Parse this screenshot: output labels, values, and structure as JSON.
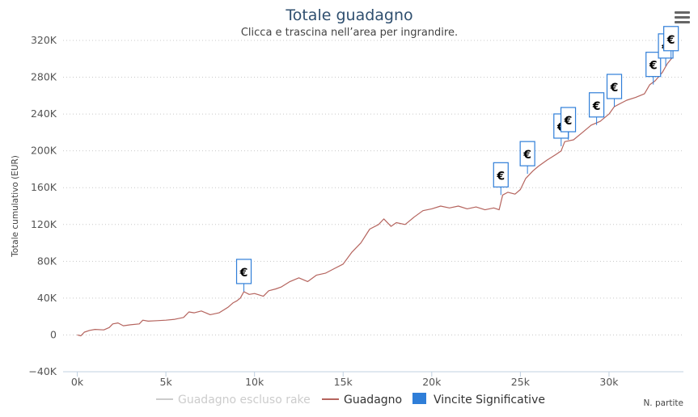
{
  "menu": {
    "icon": "hamburger-menu-icon"
  },
  "chart_data": {
    "type": "line",
    "title": "Totale guadagno",
    "subtitle": "Clicca e trascina nell’area per ingrandire.",
    "ylabel": "Totale cumulativo (EUR)",
    "xlabel": "N. partite",
    "xlim": [
      -800,
      34200
    ],
    "ylim": [
      -40000,
      320000
    ],
    "x_ticks": [
      0,
      5000,
      10000,
      15000,
      20000,
      25000,
      30000
    ],
    "x_tick_labels": [
      "0k",
      "5k",
      "10k",
      "15k",
      "20k",
      "25k",
      "30k"
    ],
    "y_ticks": [
      -40000,
      0,
      40000,
      80000,
      120000,
      160000,
      200000,
      240000,
      280000,
      320000
    ],
    "y_tick_labels": [
      "−40K",
      "0",
      "40K",
      "80K",
      "120K",
      "160K",
      "200K",
      "240K",
      "280K",
      "320K"
    ],
    "grid": true,
    "legend_position": "bottom-center",
    "legend": [
      {
        "label": "Guadagno escluso rake",
        "color": "#cccccc",
        "symbol": "line"
      },
      {
        "label": "Guadagno",
        "color": "#b5645e",
        "symbol": "line"
      },
      {
        "label": "Vincite Significative",
        "color": "#2f7ed8",
        "symbol": "square"
      }
    ],
    "series": [
      {
        "name": "Guadagno",
        "color": "#b5645e",
        "x": [
          0,
          200,
          400,
          700,
          1000,
          1500,
          1800,
          2000,
          2300,
          2600,
          3000,
          3500,
          3700,
          4000,
          4500,
          5000,
          5500,
          6000,
          6300,
          6600,
          7000,
          7500,
          8000,
          8500,
          8800,
          9000,
          9200,
          9400,
          9700,
          10000,
          10500,
          10800,
          11200,
          11500,
          12000,
          12500,
          13000,
          13500,
          14000,
          14500,
          15000,
          15500,
          16000,
          16500,
          17000,
          17300,
          17700,
          18000,
          18500,
          19000,
          19500,
          20000,
          20500,
          21000,
          21500,
          22000,
          22500,
          23000,
          23500,
          23800,
          24000,
          24300,
          24700,
          25000,
          25300,
          25700,
          26000,
          26500,
          27000,
          27300,
          27500,
          28000,
          28500,
          29000,
          29500,
          30000,
          30300,
          30700,
          31000,
          31500,
          32000,
          32300,
          32600,
          33000,
          33300,
          33600
        ],
        "y": [
          0,
          -1000,
          3000,
          5000,
          6000,
          5500,
          8000,
          12000,
          13000,
          10000,
          11000,
          12000,
          16000,
          15000,
          15500,
          16000,
          17000,
          19000,
          25000,
          24000,
          26000,
          22000,
          24000,
          30000,
          35000,
          37000,
          40000,
          47000,
          44000,
          45000,
          42000,
          48000,
          50000,
          52000,
          58000,
          62000,
          58000,
          65000,
          67000,
          72000,
          77000,
          90000,
          100000,
          115000,
          120000,
          126000,
          118000,
          122000,
          120000,
          128000,
          135000,
          137000,
          140000,
          138000,
          140000,
          137000,
          139000,
          136000,
          138000,
          136000,
          152000,
          155000,
          153000,
          158000,
          170000,
          178000,
          183000,
          190000,
          196000,
          200000,
          210000,
          212000,
          220000,
          228000,
          232000,
          240000,
          248000,
          252000,
          255000,
          258000,
          262000,
          272000,
          276000,
          285000,
          295000,
          302000
        ]
      }
    ],
    "flags": {
      "text": "€",
      "color": "#2f7ed8",
      "points": [
        {
          "x": 9400,
          "y": 47000
        },
        {
          "x": 23900,
          "y": 152000
        },
        {
          "x": 25400,
          "y": 175000
        },
        {
          "x": 27300,
          "y": 205000
        },
        {
          "x": 27700,
          "y": 212000
        },
        {
          "x": 29300,
          "y": 228000
        },
        {
          "x": 30300,
          "y": 248000
        },
        {
          "x": 32500,
          "y": 272000
        },
        {
          "x": 33200,
          "y": 292000
        },
        {
          "x": 33500,
          "y": 300000
        }
      ]
    }
  }
}
